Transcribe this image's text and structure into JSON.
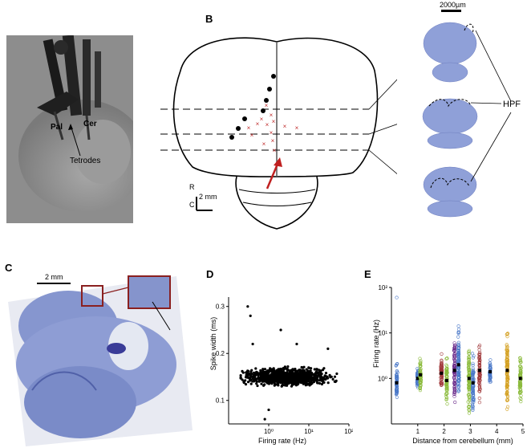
{
  "panels": {
    "A": {
      "letter": "A",
      "labels": {
        "pal": "Pal",
        "cer": "Cer",
        "tetrodes": "Tetrodes"
      }
    },
    "B": {
      "letter": "B",
      "scale_top": "2000µm",
      "scale_side": "2 mm",
      "axis_r": "R",
      "axis_c": "C",
      "hpf": "HPF"
    },
    "C": {
      "letter": "C",
      "scale": "2 mm"
    },
    "D": {
      "letter": "D"
    },
    "E": {
      "letter": "E"
    }
  },
  "chart_data": [
    {
      "panel": "D",
      "type": "scatter",
      "xlabel": "Firing rate (Hz)",
      "ylabel": "Spike width (ms)",
      "xscale": "log",
      "xlim": [
        0.1,
        100
      ],
      "ylim": [
        0.05,
        0.32
      ],
      "xticks": [
        "10⁰",
        "10¹",
        "10²"
      ],
      "yticks": [
        "0.1",
        "0.2",
        "0.3"
      ],
      "cluster": {
        "x_range": [
          0.2,
          50
        ],
        "y_center": 0.15,
        "y_spread": 0.025
      },
      "outliers": [
        {
          "x": 0.3,
          "y": 0.3
        },
        {
          "x": 0.35,
          "y": 0.28
        },
        {
          "x": 0.4,
          "y": 0.22
        },
        {
          "x": 2.0,
          "y": 0.25
        },
        {
          "x": 5.0,
          "y": 0.22
        },
        {
          "x": 1.0,
          "y": 0.08
        },
        {
          "x": 0.8,
          "y": 0.06
        },
        {
          "x": 30,
          "y": 0.21
        }
      ]
    },
    {
      "panel": "E",
      "type": "scatter",
      "xlabel": "Distance from cerebellum (mm)",
      "ylabel": "Firing rate (Hz)",
      "yscale": "log",
      "ylim": [
        0.1,
        100
      ],
      "xlim": [
        0,
        5
      ],
      "xticks": [
        "1",
        "2",
        "3",
        "4",
        "5"
      ],
      "yticks": [
        "10⁰",
        "10¹",
        "10²"
      ],
      "columns": [
        {
          "x": 0.2,
          "color": "#4a78c8",
          "min": 0.2,
          "max": 3,
          "median": 0.8,
          "extra": 60
        },
        {
          "x": 1.0,
          "color": "#4a78c8",
          "min": 0.4,
          "max": 2,
          "median": 1.0
        },
        {
          "x": 1.1,
          "color": "#8aba3a",
          "min": 0.3,
          "max": 3,
          "median": 1.2
        },
        {
          "x": 1.9,
          "color": "#a0383a",
          "min": 0.3,
          "max": 4,
          "median": 1.3
        },
        {
          "x": 2.1,
          "color": "#8aba3a",
          "min": 0.2,
          "max": 5,
          "median": 0.9
        },
        {
          "x": 2.4,
          "color": "#6a2a8a",
          "min": 0.3,
          "max": 40,
          "median": 1.5
        },
        {
          "x": 2.55,
          "color": "#4a78c8",
          "min": 0.1,
          "max": 30,
          "median": 2.0
        },
        {
          "x": 2.95,
          "color": "#8aba3a",
          "min": 0.1,
          "max": 20,
          "median": 1.0
        },
        {
          "x": 3.1,
          "color": "#4a78c8",
          "min": 0.2,
          "max": 10,
          "median": 0.8
        },
        {
          "x": 3.35,
          "color": "#a0383a",
          "min": 0.2,
          "max": 8,
          "median": 1.5
        },
        {
          "x": 3.75,
          "color": "#4a78c8",
          "min": 0.5,
          "max": 3,
          "median": 1.4
        },
        {
          "x": 4.4,
          "color": "#d4a020",
          "min": 0.1,
          "max": 50,
          "median": 1.5
        },
        {
          "x": 4.9,
          "color": "#8aba3a",
          "min": 0.2,
          "max": 8,
          "median": 1.0
        }
      ]
    }
  ]
}
